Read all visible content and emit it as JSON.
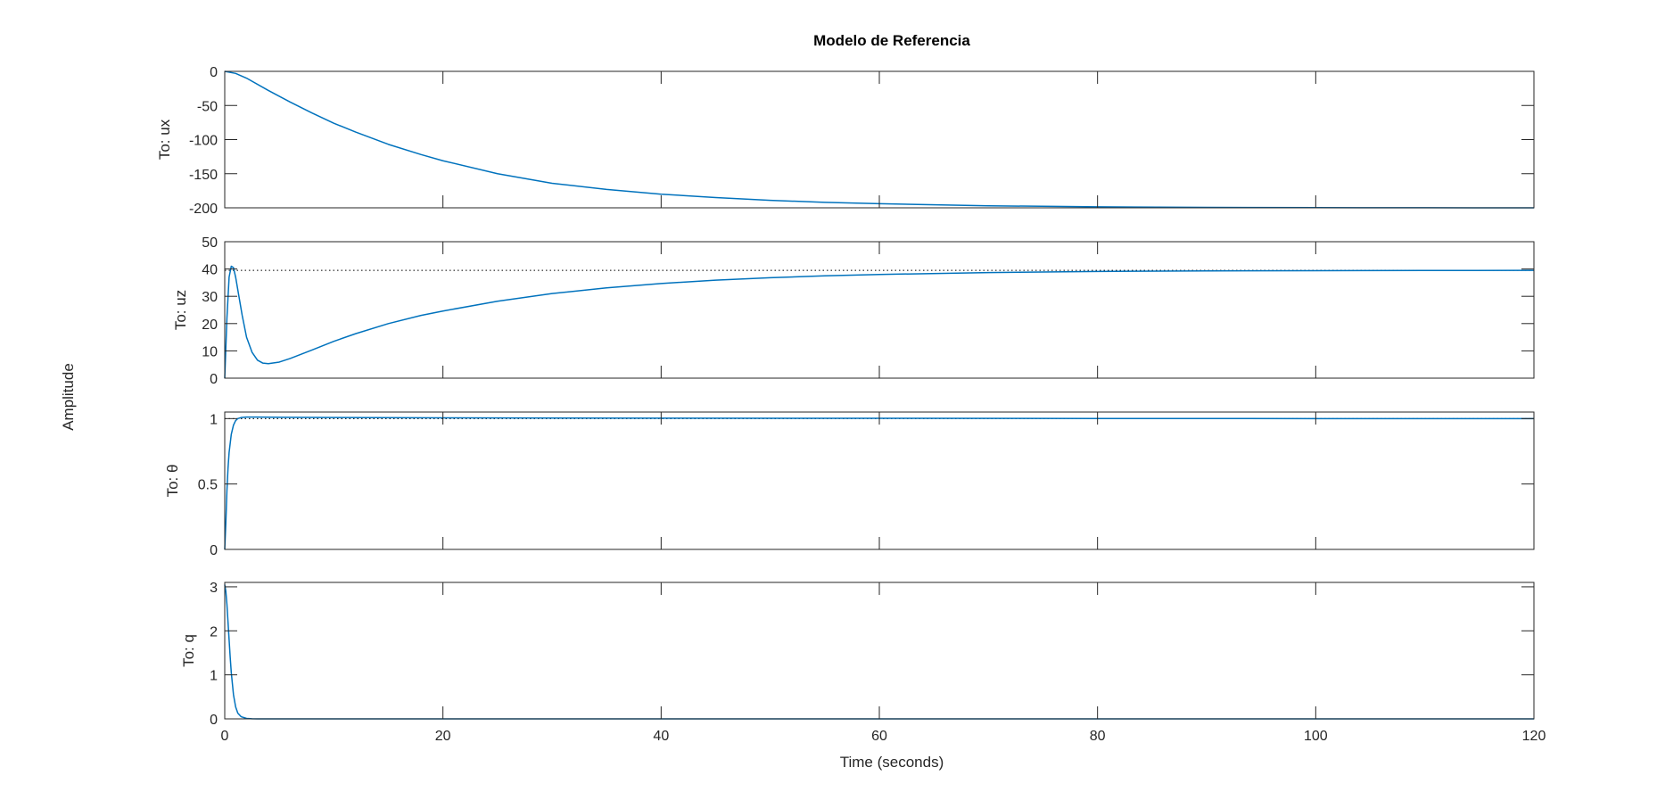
{
  "chart_data": {
    "type": "line",
    "title": "Modelo de Referencia",
    "xlabel": "Time (seconds)",
    "ylabel": "Amplitude",
    "xlim": [
      0,
      120
    ],
    "x_ticks": [
      0,
      20,
      40,
      60,
      80,
      100,
      120
    ],
    "grid": false,
    "colors": {
      "series": "#0072BD",
      "axes": "#262626",
      "steady_state": "#000000"
    },
    "subplots": [
      {
        "ylabel": "To: ux",
        "ylim": [
          -200,
          0
        ],
        "y_ticks": [
          -200,
          -150,
          -100,
          -50,
          0
        ],
        "steady_state": -200,
        "series": [
          {
            "x": [
              0,
              1,
              2,
              4,
              6,
              8,
              10,
              12,
              15,
              18,
              20,
              25,
              30,
              35,
              40,
              45,
              50,
              55,
              60,
              70,
              80,
              90,
              100,
              110,
              120
            ],
            "y": [
              0,
              -3,
              -10,
              -28,
              -45,
              -61,
              -76,
              -89,
              -107,
              -122,
              -131,
              -150,
              -164,
              -173,
              -180,
              -185,
              -189,
              -192,
              -194,
              -197,
              -198.6,
              -199.3,
              -199.7,
              -199.9,
              -200
            ]
          }
        ]
      },
      {
        "ylabel": "To: uz",
        "ylim": [
          0,
          50
        ],
        "y_ticks": [
          0,
          10,
          20,
          30,
          40,
          50
        ],
        "steady_state": 39.5,
        "series": [
          {
            "x": [
              0,
              0.2,
              0.4,
              0.6,
              0.8,
              1.0,
              1.3,
              1.6,
              2.0,
              2.5,
              3.0,
              3.5,
              4.0,
              5,
              6,
              8,
              10,
              12,
              15,
              18,
              20,
              25,
              30,
              35,
              40,
              45,
              50,
              55,
              60,
              70,
              80,
              90,
              100,
              110,
              120
            ],
            "y": [
              0,
              22,
              37,
              41,
              40.5,
              37,
              30,
              23,
              15,
              9.5,
              6.6,
              5.5,
              5.3,
              5.9,
              7.2,
              10.3,
              13.5,
              16.3,
              20,
              23,
              24.6,
              28.2,
              31,
              33.1,
              34.7,
              35.9,
              36.8,
              37.5,
              38,
              38.7,
              39.1,
              39.3,
              39.4,
              39.45,
              39.5
            ]
          }
        ]
      },
      {
        "ylabel": "To: θ",
        "ylim": [
          0,
          1.05
        ],
        "y_ticks": [
          0,
          0.5,
          1
        ],
        "steady_state": 1,
        "series": [
          {
            "x": [
              0,
              0.1,
              0.2,
              0.3,
              0.4,
              0.6,
              0.8,
              1.0,
              1.2,
              1.5,
              2.0,
              3.0,
              5,
              10,
              20,
              40,
              60,
              80,
              100,
              120
            ],
            "y": [
              0,
              0.2,
              0.45,
              0.62,
              0.74,
              0.88,
              0.95,
              0.985,
              1.0,
              1.008,
              1.012,
              1.012,
              1.01,
              1.008,
              1.006,
              1.003,
              1.002,
              1.001,
              1.0,
              1.0
            ]
          }
        ]
      },
      {
        "ylabel": "To: q",
        "ylim": [
          0,
          3.1
        ],
        "y_ticks": [
          0,
          1,
          2,
          3
        ],
        "steady_state": 0,
        "series": [
          {
            "x": [
              0,
              0.1,
              0.2,
              0.3,
              0.4,
              0.5,
              0.6,
              0.8,
              1.0,
              1.2,
              1.5,
              2.0,
              2.5,
              3,
              5,
              10,
              20,
              40,
              60,
              80,
              100,
              120
            ],
            "y": [
              3.05,
              2.9,
              2.6,
              2.2,
              1.8,
              1.4,
              1.05,
              0.55,
              0.27,
              0.13,
              0.05,
              0.01,
              0.002,
              0,
              0,
              0,
              0,
              0,
              0,
              0,
              0,
              0
            ]
          }
        ]
      }
    ]
  }
}
